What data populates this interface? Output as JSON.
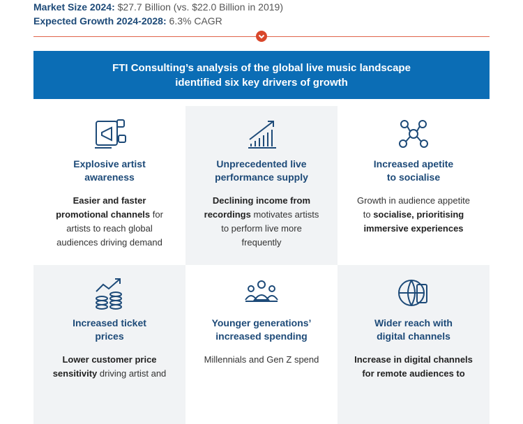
{
  "header": {
    "lines": [
      {
        "label": "Market Size 2024:",
        "value": "$27.7 Billion (vs. $22.0 Billion in 2019)"
      },
      {
        "label": "Expected Growth 2024-2028:",
        "value": "6.3% CAGR"
      }
    ]
  },
  "banner": {
    "lines": [
      "FTI Consulting’s analysis of the global live music landscape",
      "identified six key drivers of growth"
    ]
  },
  "cards": [
    {
      "title": [
        "Explosive artist",
        "awareness"
      ],
      "body": [
        [
          {
            "text": "Easier and faster",
            "bold": true
          }
        ],
        [
          {
            "text": "promotional channels",
            "bold": true
          },
          {
            "text": " for",
            "bold": false
          }
        ],
        [
          {
            "text": "artists to reach global",
            "bold": false
          }
        ],
        [
          {
            "text": "audiences driving demand",
            "bold": false
          }
        ]
      ]
    },
    {
      "title": [
        "Unprecedented live",
        "performance supply"
      ],
      "body": [
        [
          {
            "text": "Declining income from",
            "bold": true
          }
        ],
        [
          {
            "text": "recordings",
            "bold": true
          },
          {
            "text": " motivates artists",
            "bold": false
          }
        ],
        [
          {
            "text": "to perform live more",
            "bold": false
          }
        ],
        [
          {
            "text": "frequently",
            "bold": false
          }
        ]
      ]
    },
    {
      "title": [
        "Increased apetite",
        "to socialise"
      ],
      "body": [
        [
          {
            "text": "Growth in audience appetite",
            "bold": false
          }
        ],
        [
          {
            "text": "to ",
            "bold": false
          },
          {
            "text": "socialise, prioritising",
            "bold": true
          }
        ],
        [
          {
            "text": "immersive experiences",
            "bold": true
          }
        ]
      ]
    },
    {
      "title": [
        "Increased ticket",
        "prices"
      ],
      "body": [
        [
          {
            "text": "Lower customer price",
            "bold": true
          }
        ],
        [
          {
            "text": "sensitivity",
            "bold": true
          },
          {
            "text": " driving artist and",
            "bold": false
          }
        ]
      ]
    },
    {
      "title": [
        "Younger generations’",
        "increased spending"
      ],
      "body": [
        [
          {
            "text": "Millennials and Gen Z spend",
            "bold": false
          }
        ]
      ]
    },
    {
      "title": [
        "Wider reach with",
        "digital channels"
      ],
      "body": [
        [
          {
            "text": "Increase in digital channels",
            "bold": true
          }
        ],
        [
          {
            "text": "for remote audiences to",
            "bold": true
          }
        ]
      ]
    }
  ]
}
